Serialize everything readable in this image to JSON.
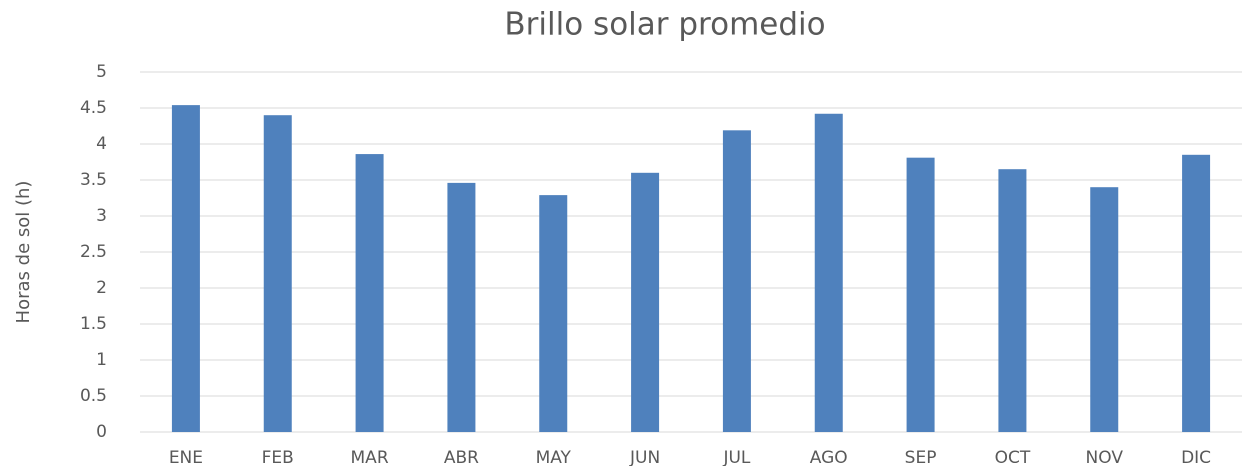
{
  "chart_data": {
    "type": "bar",
    "title": "Brillo solar promedio",
    "y_label": "Horas de sol (h)",
    "categories": [
      "ENE",
      "FEB",
      "MAR",
      "ABR",
      "MAY",
      "JUN",
      "JUL",
      "AGO",
      "SEP",
      "OCT",
      "NOV",
      "DIC"
    ],
    "values": [
      4.54,
      4.4,
      3.86,
      3.46,
      3.29,
      3.6,
      4.19,
      4.42,
      3.81,
      3.65,
      3.4,
      3.85
    ],
    "color": "#4f81bd",
    "ylim": [
      0,
      5
    ],
    "yticks": [
      0,
      0.5,
      1,
      1.5,
      2,
      2.5,
      3,
      3.5,
      4,
      4.5,
      5
    ],
    "grid": true
  }
}
